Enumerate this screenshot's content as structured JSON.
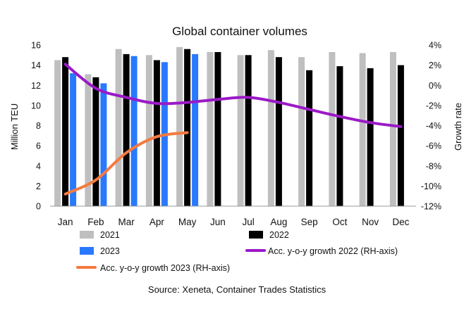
{
  "chart_data": {
    "type": "bar",
    "title": "Global container volumes",
    "ylabel": "Million TEU",
    "y2label": "Growth rate",
    "ylim": [
      0,
      16
    ],
    "y2lim": [
      -12,
      4
    ],
    "yticks": [
      "0",
      "2",
      "4",
      "6",
      "8",
      "10",
      "12",
      "14",
      "16"
    ],
    "y2ticks": [
      "-12%",
      "-10%",
      "-8%",
      "-6%",
      "-4%",
      "-2%",
      "0%",
      "2%",
      "4%"
    ],
    "categories": [
      "Jan",
      "Feb",
      "Mar",
      "Apr",
      "May",
      "Jun",
      "Jul",
      "Aug",
      "Sep",
      "Oct",
      "Nov",
      "Dec"
    ],
    "bar_series": [
      {
        "name": "2021",
        "color": "#bfbfbf",
        "values": [
          14.5,
          13.1,
          15.6,
          15.0,
          15.8,
          15.3,
          15.0,
          15.5,
          14.8,
          15.3,
          15.2,
          15.3
        ]
      },
      {
        "name": "2022",
        "color": "#000000",
        "values": [
          14.8,
          12.8,
          15.1,
          14.5,
          15.6,
          15.3,
          15.0,
          14.8,
          13.5,
          13.9,
          13.7,
          14.0
        ]
      },
      {
        "name": "2023",
        "color": "#2979ff",
        "values": [
          13.2,
          12.2,
          14.9,
          14.3,
          15.1,
          null,
          null,
          null,
          null,
          null,
          null,
          null
        ]
      }
    ],
    "line_series": [
      {
        "name": "Acc. y-o-y growth 2022 (RH-axis)",
        "color": "#9b19c7",
        "axis": "right",
        "values": [
          2.1,
          -0.3,
          -1.2,
          -1.8,
          -1.7,
          -1.4,
          -1.2,
          -1.7,
          -2.4,
          -3.1,
          -3.7,
          -4.1
        ]
      },
      {
        "name": "Acc. y-o-y growth 2023 (RH-axis)",
        "color": "#f47a3f",
        "axis": "right",
        "values": [
          -10.8,
          -9.4,
          -6.7,
          -5.1,
          -4.7,
          null,
          null,
          null,
          null,
          null,
          null,
          null
        ]
      }
    ],
    "legend_position": "bottom",
    "grid": false,
    "source": "Source: Xeneta, Container Trades Statistics"
  }
}
